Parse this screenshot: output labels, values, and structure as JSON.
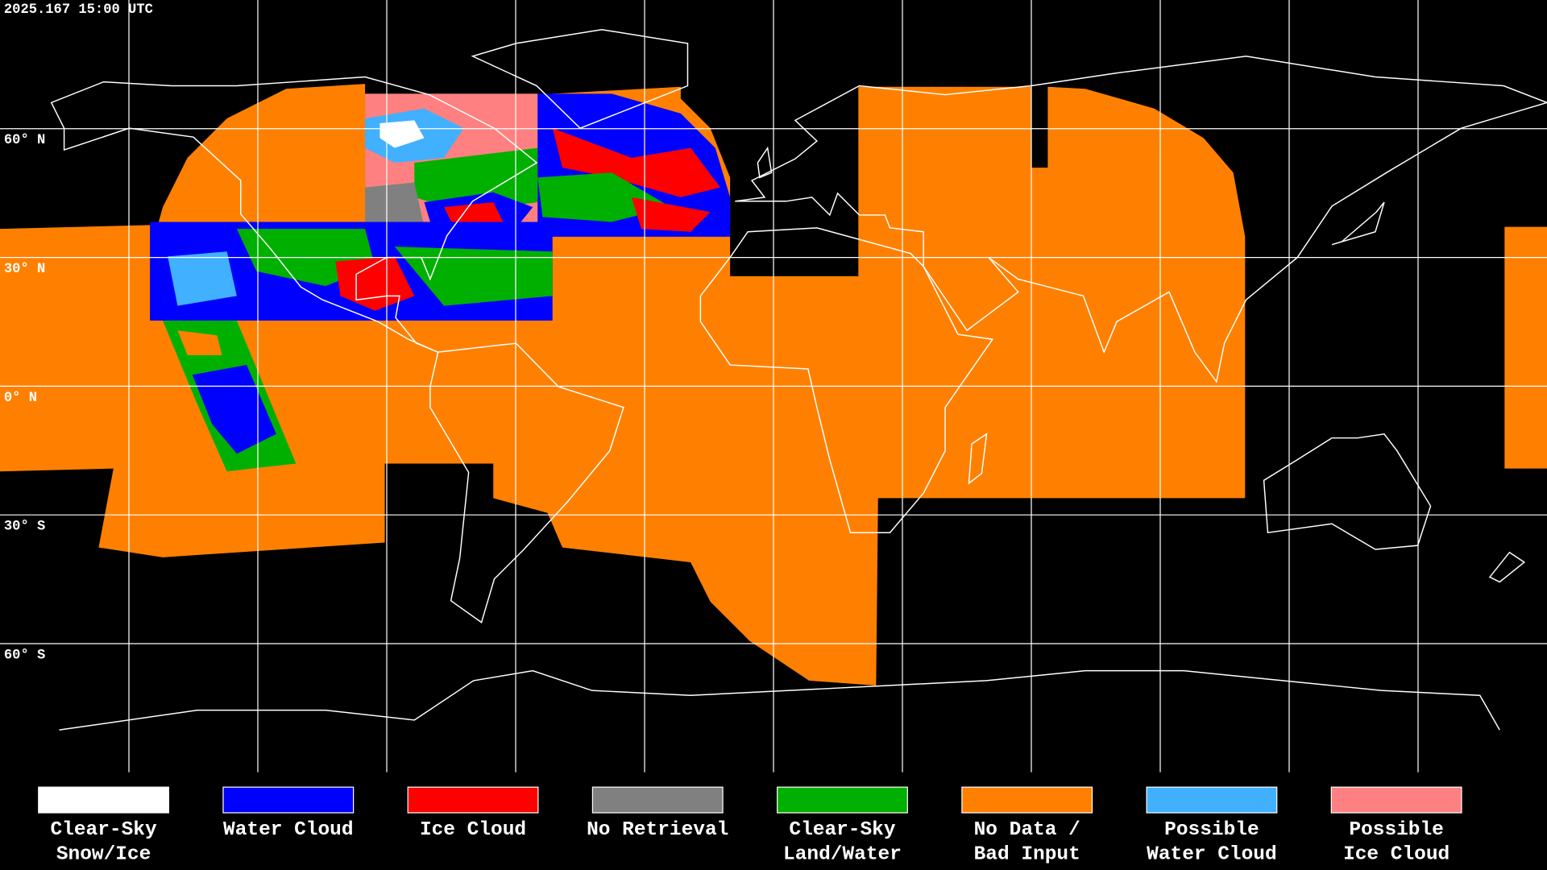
{
  "header": {
    "timestamp": "2025.167 15:00 UTC"
  },
  "map": {
    "lat_labels": [
      "60° N",
      "30° N",
      "0° N",
      "30° S",
      "60° S"
    ]
  },
  "legend": {
    "items": [
      {
        "lines": [
          "Clear-Sky",
          "Snow/Ice"
        ],
        "color": "#ffffff"
      },
      {
        "lines": [
          "Water Cloud"
        ],
        "color": "#0000ff"
      },
      {
        "lines": [
          "Ice Cloud"
        ],
        "color": "#ff0000"
      },
      {
        "lines": [
          "No Retrieval"
        ],
        "color": "#808080"
      },
      {
        "lines": [
          "Clear-Sky",
          "Land/Water"
        ],
        "color": "#00b000"
      },
      {
        "lines": [
          "No Data /",
          "Bad Input"
        ],
        "color": "#ff8000"
      },
      {
        "lines": [
          "Possible",
          "Water Cloud"
        ],
        "color": "#40b0ff"
      },
      {
        "lines": [
          "Possible",
          "Ice Cloud"
        ],
        "color": "#ff8080"
      }
    ]
  }
}
